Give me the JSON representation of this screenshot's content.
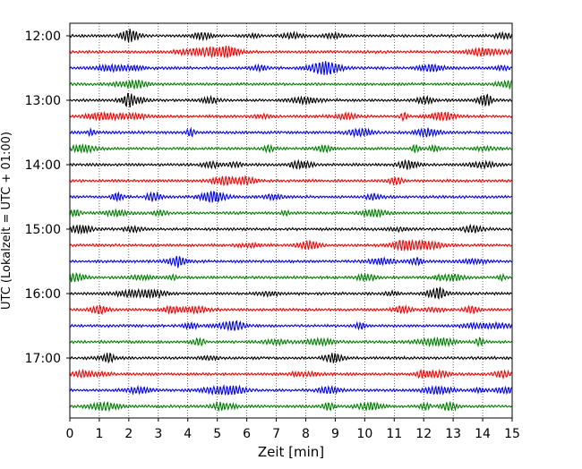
{
  "chart_data": {
    "type": "line",
    "title": "",
    "xlabel": "Zeit  [min]",
    "ylabel": "UTC (Lokalzeit = UTC + 01:00)",
    "xlim": [
      0,
      15
    ],
    "xticks": [
      0,
      1,
      2,
      3,
      4,
      5,
      6,
      7,
      8,
      9,
      10,
      11,
      12,
      13,
      14,
      15
    ],
    "xgrid": "dotted vertical lines at each minute",
    "ytick_labels": [
      "12:00",
      "13:00",
      "14:00",
      "15:00",
      "16:00",
      "17:00"
    ],
    "trace_interval_minutes": 15,
    "first_trace": "12:00",
    "last_trace": "17:45",
    "color_cycle": [
      "#000000",
      "#ff0000",
      "#0000ff",
      "#008000"
    ],
    "traces": [
      {
        "start": "12:00",
        "color": "#000000"
      },
      {
        "start": "12:15",
        "color": "#ff0000"
      },
      {
        "start": "12:30",
        "color": "#0000ff"
      },
      {
        "start": "12:45",
        "color": "#008000"
      },
      {
        "start": "13:00",
        "color": "#000000"
      },
      {
        "start": "13:15",
        "color": "#ff0000"
      },
      {
        "start": "13:30",
        "color": "#0000ff"
      },
      {
        "start": "13:45",
        "color": "#008000"
      },
      {
        "start": "14:00",
        "color": "#000000"
      },
      {
        "start": "14:15",
        "color": "#ff0000"
      },
      {
        "start": "14:30",
        "color": "#0000ff"
      },
      {
        "start": "14:45",
        "color": "#008000"
      },
      {
        "start": "15:00",
        "color": "#000000"
      },
      {
        "start": "15:15",
        "color": "#ff0000"
      },
      {
        "start": "15:30",
        "color": "#0000ff"
      },
      {
        "start": "15:45",
        "color": "#008000"
      },
      {
        "start": "16:00",
        "color": "#000000"
      },
      {
        "start": "16:15",
        "color": "#ff0000"
      },
      {
        "start": "16:30",
        "color": "#0000ff"
      },
      {
        "start": "16:45",
        "color": "#008000"
      },
      {
        "start": "17:00",
        "color": "#000000"
      },
      {
        "start": "17:15",
        "color": "#ff0000"
      },
      {
        "start": "17:30",
        "color": "#0000ff"
      },
      {
        "start": "17:45",
        "color": "#008000"
      }
    ],
    "grid": true,
    "legend": "none"
  }
}
